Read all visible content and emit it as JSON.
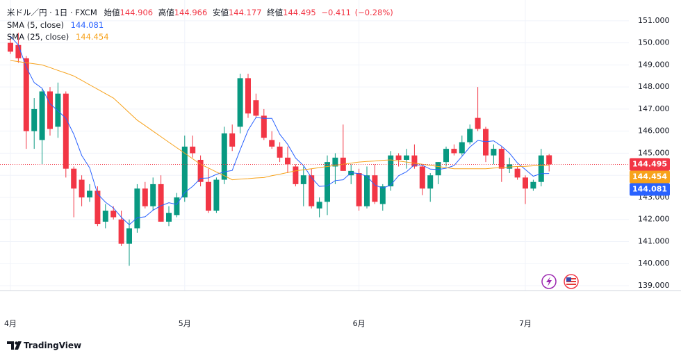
{
  "header": {
    "symbol": "米ドル／円 · 1日 · FXCM",
    "open_label": "始値",
    "high_label": "高値",
    "low_label": "安値",
    "close_label": "終値",
    "change": "−0.411",
    "change_pct": "(−0.28%)"
  },
  "chart_data": {
    "type": "candlestick",
    "categories": [
      "4月",
      null,
      null,
      null,
      null,
      null,
      null,
      null,
      null,
      null,
      null,
      null,
      null,
      null,
      null,
      null,
      null,
      null,
      null,
      null,
      null,
      null,
      "5月",
      null,
      null,
      null,
      null,
      null,
      null,
      null,
      null,
      null,
      null,
      null,
      null,
      null,
      null,
      null,
      null,
      null,
      null,
      null,
      null,
      null,
      "6月",
      null,
      null,
      null,
      null,
      null,
      null,
      null,
      null,
      null,
      null,
      null,
      null,
      null,
      null,
      null,
      null,
      null,
      null,
      null,
      null,
      "7月",
      null,
      null,
      null
    ],
    "series": [
      {
        "up_color": "#089981",
        "down_color": "#f23645",
        "open": [
          150.0,
          149.9,
          149.3,
          146.0,
          145.6,
          147.8,
          146.2,
          147.7,
          144.3,
          143.8,
          143.0,
          143.3,
          141.9,
          142.4,
          142.0,
          140.9,
          141.6,
          143.4,
          142.6,
          143.6,
          141.9,
          142.2,
          143.0,
          145.3,
          144.7,
          143.7,
          142.4,
          143.8,
          145.9,
          146.2,
          148.4,
          147.4,
          146.7,
          145.6,
          145.3,
          144.8,
          144.4,
          143.6,
          144.0,
          142.5,
          142.8,
          144.4,
          144.8,
          144.0,
          144.1,
          142.6,
          144.0,
          142.7,
          143.5,
          144.9,
          144.7,
          144.9,
          144.4,
          143.4,
          144.0,
          144.6,
          145.2,
          145.0,
          145.5,
          146.6,
          146.1,
          144.9,
          145.2,
          144.3,
          144.3,
          143.9,
          143.4,
          143.7,
          144.906
        ],
        "high": [
          150.2,
          150.45,
          149.4,
          147.5,
          147.9,
          148.0,
          148.2,
          147.8,
          144.4,
          144.0,
          143.6,
          143.5,
          142.7,
          142.6,
          142.4,
          142.0,
          143.6,
          143.7,
          143.9,
          144.0,
          142.6,
          143.2,
          145.8,
          145.8,
          144.9,
          144.3,
          143.9,
          146.2,
          146.3,
          148.6,
          148.6,
          147.7,
          147.0,
          146.0,
          145.5,
          145.3,
          144.5,
          144.4,
          144.3,
          143.0,
          144.9,
          145.0,
          146.3,
          144.5,
          144.3,
          144.4,
          144.5,
          143.6,
          145.1,
          145.0,
          145.2,
          145.4,
          144.5,
          144.1,
          144.6,
          145.3,
          145.4,
          145.8,
          146.3,
          148.0,
          146.2,
          145.4,
          145.3,
          144.8,
          144.4,
          144.0,
          143.8,
          145.2,
          144.966
        ],
        "low": [
          149.5,
          149.1,
          145.2,
          145.2,
          144.5,
          145.8,
          145.7,
          143.9,
          142.1,
          142.6,
          142.8,
          141.7,
          141.6,
          142.0,
          140.8,
          139.9,
          141.4,
          142.5,
          142.4,
          141.9,
          141.7,
          142.1,
          142.8,
          144.8,
          143.5,
          142.3,
          142.3,
          143.6,
          145.1,
          145.9,
          146.6,
          146.6,
          145.6,
          145.2,
          144.6,
          144.1,
          143.5,
          142.6,
          142.5,
          142.1,
          142.2,
          143.6,
          144.2,
          143.6,
          142.4,
          142.5,
          142.7,
          142.4,
          143.3,
          144.4,
          144.3,
          144.3,
          143.1,
          142.8,
          143.6,
          144.4,
          144.9,
          144.9,
          145.4,
          146.0,
          144.6,
          144.5,
          143.7,
          144.1,
          143.8,
          142.7,
          143.3,
          143.5,
          144.177
        ],
        "close": [
          149.6,
          149.3,
          146.0,
          147.0,
          147.8,
          146.1,
          147.7,
          144.3,
          143.4,
          143.0,
          143.3,
          141.8,
          142.4,
          142.1,
          140.9,
          141.6,
          143.4,
          142.6,
          143.6,
          141.9,
          142.3,
          143.0,
          145.3,
          145.0,
          143.7,
          142.4,
          143.8,
          145.9,
          145.3,
          148.4,
          146.8,
          146.7,
          145.7,
          145.3,
          144.8,
          144.5,
          143.6,
          144.0,
          142.6,
          142.8,
          144.6,
          144.8,
          144.2,
          144.2,
          142.6,
          144.0,
          142.8,
          143.5,
          144.9,
          144.7,
          144.9,
          144.4,
          143.4,
          144.0,
          144.6,
          145.2,
          145.0,
          145.5,
          146.1,
          146.1,
          144.9,
          145.2,
          144.3,
          144.5,
          143.9,
          143.4,
          143.7,
          144.9,
          144.495
        ]
      },
      {
        "name": "SMA (5, close)",
        "color": "#2962ff",
        "values": [
          150.3,
          149.9,
          148.9,
          148.2,
          147.94,
          147.24,
          146.92,
          146.58,
          145.86,
          144.9,
          144.34,
          143.16,
          142.78,
          142.52,
          142.1,
          141.76,
          142.08,
          142.12,
          142.42,
          142.62,
          142.76,
          142.68,
          143.22,
          143.5,
          143.86,
          143.88,
          144.04,
          144.16,
          144.22,
          145.16,
          146.04,
          146.62,
          146.58,
          146.58,
          145.86,
          145.4,
          144.78,
          144.44,
          143.9,
          143.5,
          143.52,
          143.76,
          143.8,
          144.12,
          144.08,
          143.96,
          143.56,
          143.42,
          143.56,
          143.98,
          144.16,
          144.48,
          144.46,
          144.28,
          144.26,
          144.32,
          144.44,
          144.86,
          145.28,
          145.58,
          145.52,
          145.56,
          145.32,
          145.0,
          144.56,
          144.26,
          143.96,
          144.08,
          144.081
        ]
      },
      {
        "name": "SMA (25, close)",
        "color": "#f7a21b",
        "values": [
          149.2,
          149.15,
          149.1,
          149.05,
          149.0,
          148.88,
          148.75,
          148.63,
          148.5,
          148.3,
          148.1,
          147.9,
          147.7,
          147.5,
          147.17,
          146.83,
          146.5,
          146.25,
          146.0,
          145.75,
          145.5,
          145.25,
          145.0,
          144.75,
          144.5,
          144.33,
          144.15,
          143.98,
          143.8,
          143.83,
          143.85,
          143.88,
          143.9,
          143.98,
          144.05,
          144.13,
          144.2,
          144.25,
          144.3,
          144.35,
          144.4,
          144.45,
          144.5,
          144.55,
          144.6,
          144.63,
          144.65,
          144.68,
          144.7,
          144.65,
          144.6,
          144.55,
          144.5,
          144.45,
          144.4,
          144.35,
          144.3,
          144.3,
          144.3,
          144.3,
          144.3,
          144.33,
          144.35,
          144.38,
          144.4,
          144.41,
          144.43,
          144.44,
          144.454
        ]
      }
    ],
    "ylim": [
      138.78,
      151.94
    ],
    "yticks": [
      {
        "value": 139,
        "label": "139.000"
      },
      {
        "value": 140,
        "label": "140.000"
      },
      {
        "value": 141,
        "label": "141.000"
      },
      {
        "value": 142,
        "label": "142.000"
      },
      {
        "value": 143,
        "label": "143.000"
      },
      {
        "value": 144,
        "label": "144.000"
      },
      {
        "value": 145,
        "label": "145.000"
      },
      {
        "value": 146,
        "label": "146.000"
      },
      {
        "value": 147,
        "label": "147.000"
      },
      {
        "value": 148,
        "label": "148.000"
      },
      {
        "value": 149,
        "label": "149.000"
      },
      {
        "value": 150,
        "label": "150.000"
      },
      {
        "value": 151,
        "label": "151.000"
      }
    ],
    "grid": true
  },
  "footer": {
    "brand": "TradingView"
  }
}
